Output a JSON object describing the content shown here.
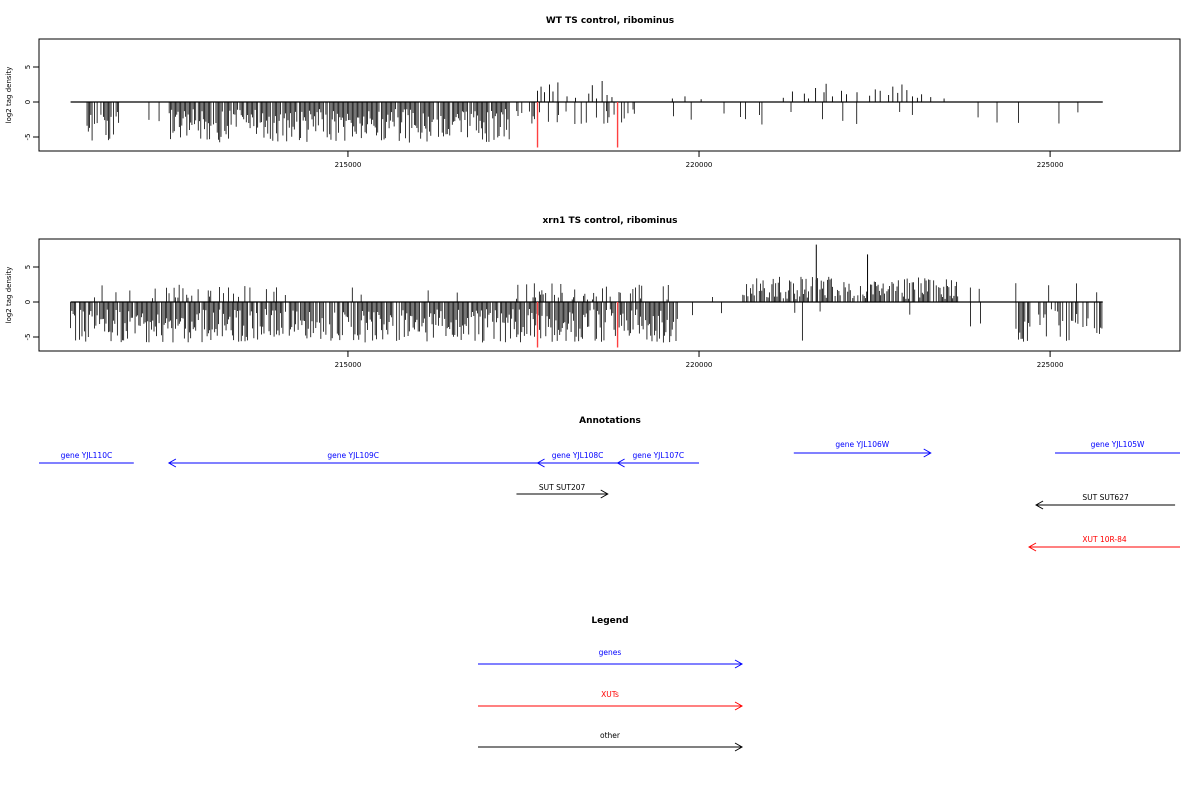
{
  "chart_data": [
    {
      "type": "bar",
      "title": "WT TS control, ribominus",
      "ylabel": "log2 tag density",
      "xlim": [
        210600,
        226850
      ],
      "ylim": [
        -7,
        9
      ],
      "x_ticks": [
        "215000",
        "220000",
        "225000"
      ],
      "y_ticks": [
        "5",
        "0",
        "-5"
      ],
      "positive_bars": {
        "x": [
          217700,
          217750,
          217800,
          217870,
          217920,
          217990,
          218120,
          218240,
          218430,
          218480,
          218540,
          218620,
          218690,
          218760,
          219620,
          219800,
          220030,
          221200,
          221330,
          221500,
          221560,
          221660,
          221780,
          221810,
          221900,
          222030,
          222100,
          222250,
          222430,
          222510,
          222580,
          222700,
          222760,
          222830,
          222890,
          222960,
          223040,
          223110,
          223170,
          223300,
          223490
        ],
        "values": [
          1.6,
          2.2,
          1.4,
          2.5,
          1.5,
          2.8,
          0.8,
          0.6,
          1.2,
          2.4,
          0.5,
          3.0,
          1.0,
          0.7,
          0.5,
          0.8,
          0.4,
          0.6,
          1.5,
          1.2,
          0.5,
          2.0,
          1.4,
          2.6,
          0.8,
          1.6,
          1.1,
          1.4,
          0.9,
          1.8,
          1.6,
          1.0,
          2.2,
          1.3,
          2.5,
          1.7,
          0.8,
          0.6,
          1.1,
          0.7,
          0.5
        ]
      },
      "negative_bars": {
        "x_range": [
          211250,
          225750
        ],
        "density": "dense from 211250 to 217300, sparse 217300-219000, very sparse after",
        "min_value": -7
      },
      "highlighted_bars": {
        "color": "#ff4040",
        "x": [
          217700,
          218840
        ],
        "values": [
          -6.5,
          -6.5
        ]
      }
    },
    {
      "type": "bar",
      "title": "xrn1 TS control, ribominus",
      "ylabel": "log2 tag density",
      "xlim": [
        210600,
        226850
      ],
      "ylim": [
        -7,
        9
      ],
      "x_ticks": [
        "215000",
        "220000",
        "225000"
      ],
      "y_ticks": [
        "5",
        "0",
        "-5"
      ],
      "positive_bars": {
        "x_range": [
          211300,
          225700
        ],
        "note": "moderate positives near 212000-214000, 217500-219000; dense positives 220600-223600",
        "max_value": 8.2
      },
      "negative_bars": {
        "x_range": [
          211050,
          225750
        ],
        "note": "dense negatives 211050-219700, sparse afterwards, cluster 224800-225700",
        "min_value": -7
      },
      "highlighted_bars": {
        "color": "#ff4040",
        "x": [
          217700,
          218840
        ],
        "values": [
          -6.5,
          -6.5
        ]
      }
    }
  ],
  "annotations": {
    "title": "Annotations",
    "items": [
      {
        "label": "gene YJL110C",
        "color": "#0000ff",
        "start": 210600,
        "end": 211950,
        "strand": "-",
        "row": 1
      },
      {
        "label": "gene YJL109C",
        "color": "#0000ff",
        "start": 212450,
        "end": 217700,
        "strand": "-",
        "row": 1
      },
      {
        "label": "gene YJL108C",
        "color": "#0000ff",
        "start": 217700,
        "end": 218840,
        "strand": "-",
        "row": 1
      },
      {
        "label": "gene YJL107C",
        "color": "#0000ff",
        "start": 218840,
        "end": 220000,
        "strand": "-",
        "row": 1
      },
      {
        "label": "gene YJL106W",
        "color": "#0000ff",
        "start": 221350,
        "end": 223300,
        "strand": "+",
        "row": 0
      },
      {
        "label": "gene YJL105W",
        "color": "#0000ff",
        "start": 225070,
        "end": 226850,
        "strand": "+",
        "row": 0
      },
      {
        "label": "SUT SUT207",
        "color": "#000000",
        "start": 217400,
        "end": 218700,
        "strand": "+",
        "row": 2
      },
      {
        "label": "SUT SUT627",
        "color": "#000000",
        "start": 224800,
        "end": 226780,
        "strand": "-",
        "row": 3
      },
      {
        "label": "XUT 10R-84",
        "color": "#ff0000",
        "start": 224700,
        "end": 226850,
        "strand": "-",
        "row": 4
      }
    ]
  },
  "legend": {
    "title": "Legend",
    "items": [
      {
        "label": "genes",
        "color": "#0000ff"
      },
      {
        "label": "XUTs",
        "color": "#ff0000"
      },
      {
        "label": "other",
        "color": "#000000"
      }
    ]
  }
}
